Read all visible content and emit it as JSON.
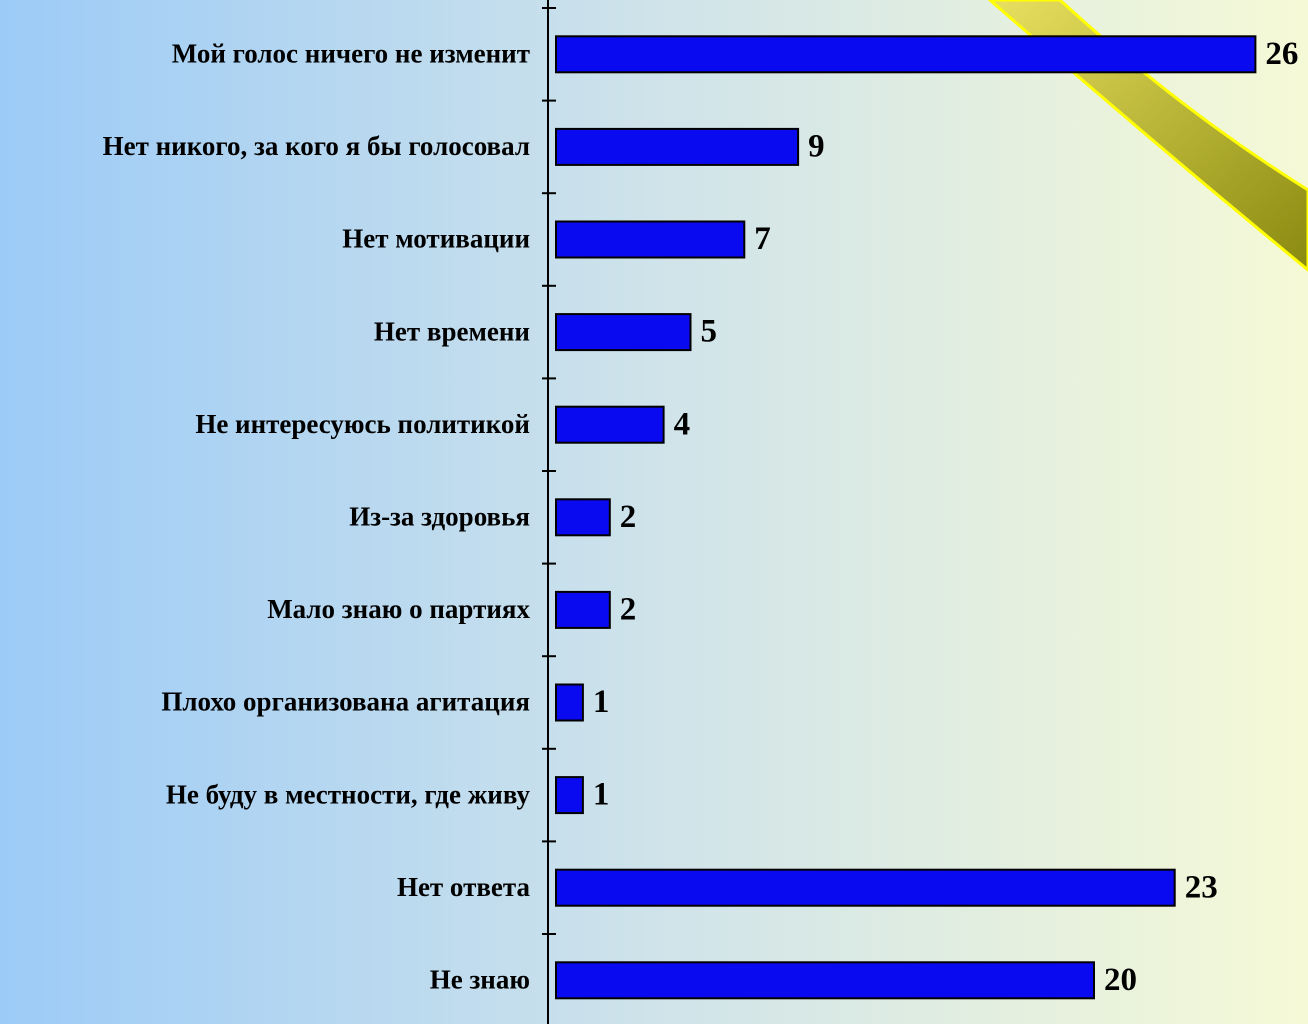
{
  "chart_data": {
    "type": "bar",
    "orientation": "horizontal",
    "categories": [
      "Мой голос ничего не изменит",
      "Нет никого, за кого я бы голосовал",
      "Нет мотивации",
      "Нет времени",
      "Не интересуюсь политикой",
      "Из-за здоровья",
      "Мало знаю о партиях",
      "Плохо организована агитация",
      "Не буду в местности, где живу",
      "Нет ответа",
      "Не знаю"
    ],
    "values": [
      26,
      9,
      7,
      5,
      4,
      2,
      2,
      1,
      1,
      23,
      20
    ],
    "color": "#0a0af0"
  }
}
